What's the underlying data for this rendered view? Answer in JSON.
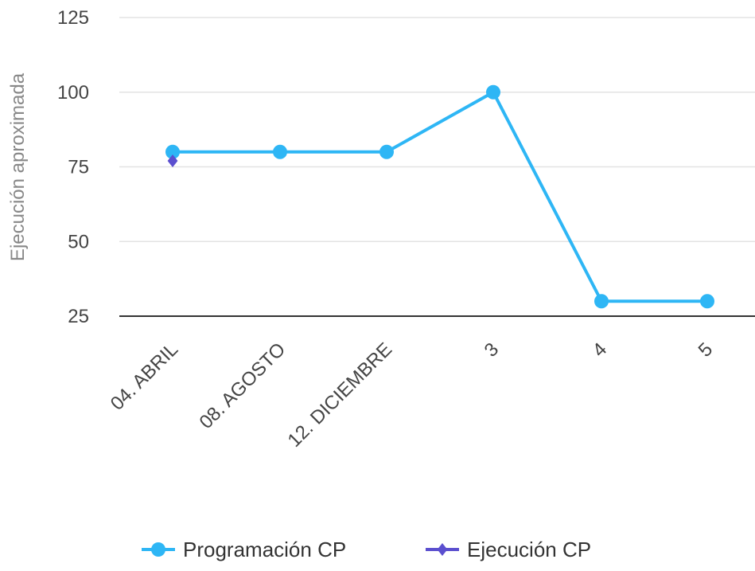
{
  "chart_data": {
    "type": "line",
    "categories": [
      "04. ABRIL",
      "08. AGOSTO",
      "12. DICIEMBRE",
      "3",
      "4",
      "5"
    ],
    "series": [
      {
        "name": "Programación CP",
        "values": [
          80,
          80,
          80,
          100,
          30,
          30
        ],
        "color": "#2eb6f5",
        "marker": "circle"
      },
      {
        "name": "Ejecución CP",
        "values": [
          77,
          null,
          null,
          null,
          null,
          null
        ],
        "color": "#5b4fcf",
        "marker": "diamond"
      }
    ],
    "ylabel": "Ejecución aproximada",
    "xlabel": "",
    "title": "",
    "ylim": [
      25,
      125
    ],
    "yticks": [
      "125",
      "100",
      "75",
      "50",
      "25"
    ],
    "grid": true,
    "legend_position": "bottom"
  }
}
